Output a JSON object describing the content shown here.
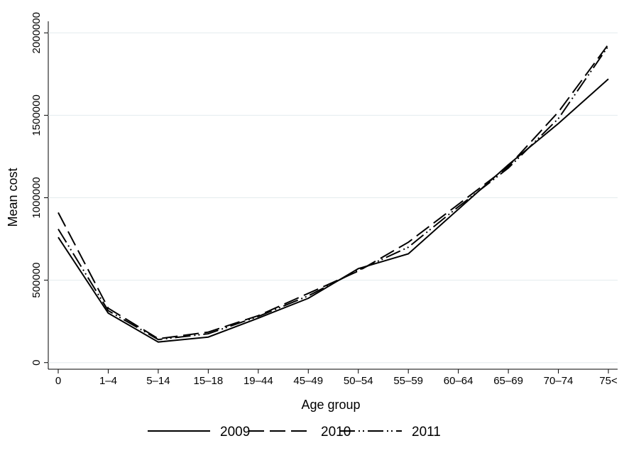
{
  "chart_data": {
    "type": "line",
    "x_label": "Age group",
    "y_label": "Mean cost",
    "categories": [
      "0",
      "1–4",
      "5–14",
      "15–18",
      "19–44",
      "45–49",
      "50–54",
      "55–59",
      "60–64",
      "65–69",
      "70–74",
      "75<"
    ],
    "series": [
      {
        "name": "2009",
        "color": "#000000",
        "dash": "none",
        "values": [
          760000,
          300000,
          125000,
          155000,
          270000,
          390000,
          570000,
          660000,
          930000,
          1200000,
          1450000,
          1720000
        ]
      },
      {
        "name": "2010",
        "color": "#000000",
        "dash": "22 8",
        "values": [
          910000,
          330000,
          145000,
          185000,
          285000,
          420000,
          555000,
          730000,
          960000,
          1190000,
          1520000,
          1930000
        ]
      },
      {
        "name": "2011",
        "color": "#000000",
        "dash": "22 5 2 4 2 5",
        "values": [
          810000,
          315000,
          140000,
          175000,
          280000,
          405000,
          560000,
          700000,
          945000,
          1180000,
          1480000,
          1920000
        ]
      }
    ],
    "ylim": [
      -40000,
      2070000
    ],
    "yticks": [
      0,
      500000,
      1000000,
      1500000,
      2000000
    ],
    "grid": true,
    "legend": "bottom"
  }
}
